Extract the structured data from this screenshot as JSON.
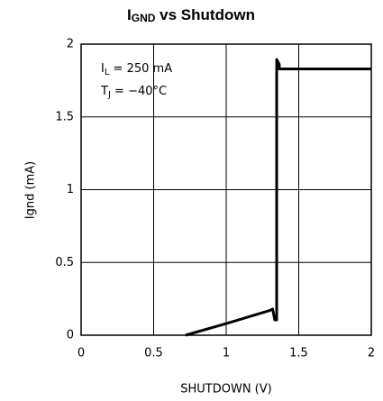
{
  "chart_data": {
    "type": "line",
    "title_parts": [
      "I",
      "GND",
      " vs Shutdown"
    ],
    "xlabel": "SHUTDOWN (V)",
    "ylabel": "Ignd (mA)",
    "annotations": [
      [
        "I",
        "L",
        "  =  250 mA"
      ],
      [
        "T",
        "J",
        "  =  −40°C"
      ]
    ],
    "x": [
      0.72,
      1.0,
      1.3,
      1.32,
      1.335,
      1.348,
      1.348,
      1.366,
      1.366,
      2.0
    ],
    "series": [
      {
        "color": "#000000",
        "values": [
          0,
          0.08,
          0.17,
          0.18,
          0.105,
          0.105,
          1.895,
          1.86,
          1.83,
          1.83
        ]
      }
    ],
    "xlim": [
      0,
      2
    ],
    "xticks": [
      0,
      0.5,
      1,
      1.5,
      2
    ],
    "ylim": [
      0,
      2
    ],
    "yticks": [
      0,
      0.5,
      1,
      1.5,
      2
    ],
    "grid": true
  }
}
